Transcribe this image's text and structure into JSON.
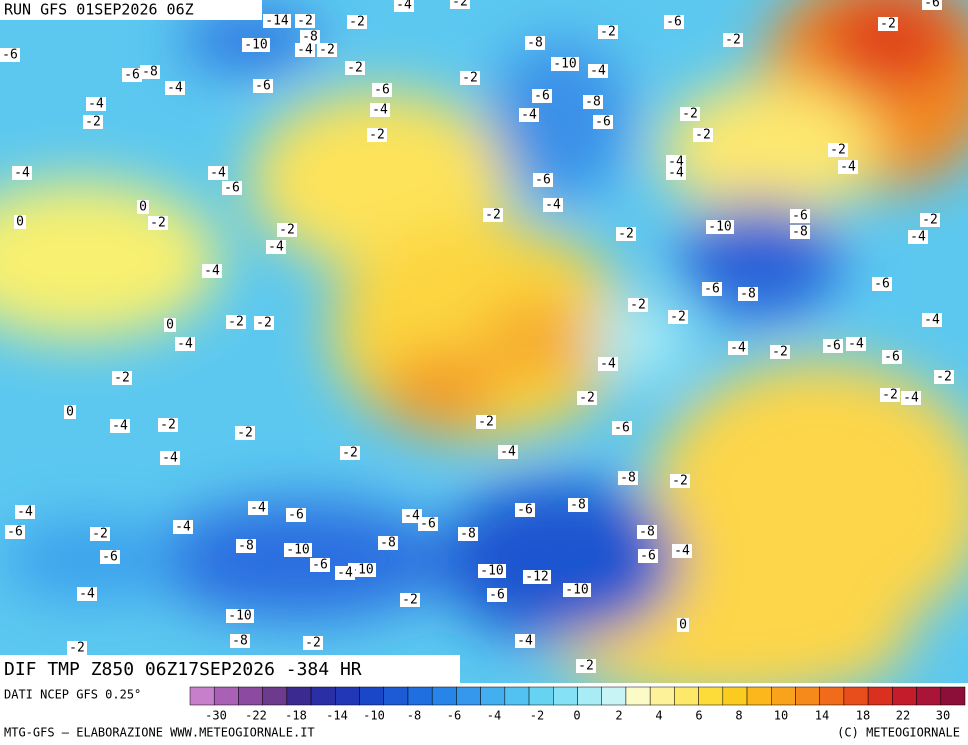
{
  "header": {
    "run": "RUN GFS 01SEP2026 06Z"
  },
  "map": {
    "title": "DIF TMP Z850 06Z17SEP2026 -384 HR",
    "contour_labels": [
      -14,
      -2,
      -2,
      -4,
      -6,
      -10,
      -8,
      -4,
      -2,
      -6,
      -8,
      -4,
      -6,
      -2,
      -2,
      -6,
      -4,
      -2,
      -4,
      -2,
      -4,
      -4,
      -6,
      0,
      -2,
      0,
      -2,
      -4,
      -4,
      0,
      -2,
      -2,
      -4,
      -2,
      0,
      -4,
      -2,
      -2,
      -4,
      -2,
      -4,
      -6,
      -2,
      -4,
      -4,
      -6,
      -6,
      -8,
      -10,
      -6,
      -10,
      -4,
      -8,
      -4,
      -6,
      -8,
      -6,
      -8,
      -8,
      -2,
      -8,
      -6,
      -4,
      -10,
      -12,
      -10,
      -6,
      -2,
      -4,
      -10,
      -8,
      -2,
      -2,
      -4,
      0,
      -2,
      -8,
      -10,
      -4,
      -6,
      -8,
      -4,
      -6,
      -2,
      -6,
      -2,
      -2,
      -2,
      -4,
      -4,
      -2,
      -4,
      -6,
      -4,
      -2,
      -2,
      -10,
      -6,
      -8,
      -6,
      -8,
      -6,
      -2,
      -2,
      -4,
      -2,
      -6,
      -4,
      -6,
      -4,
      -2,
      -2,
      -4,
      -4,
      -2,
      -2,
      -6,
      -4,
      -2,
      -6,
      -2,
      -4,
      -2
    ]
  },
  "legend": {
    "source": "DATI NCEP GFS 0.25°",
    "colors": [
      "#c77fcc",
      "#a960b5",
      "#8c4aa0",
      "#6e3a8e",
      "#3b2a8f",
      "#2a2fa5",
      "#2137b8",
      "#1a46c8",
      "#1c5ad6",
      "#1f6fe0",
      "#2784e8",
      "#3598ec",
      "#43aef0",
      "#52c2f2",
      "#66d3f3",
      "#85e1f5",
      "#a8ecf6",
      "#c9f4f5",
      "#fbfbc8",
      "#fdf29a",
      "#fde869",
      "#fddc3a",
      "#fccb1f",
      "#fbb71c",
      "#f9a21b",
      "#f68a1a",
      "#f06c1a",
      "#e84e1c",
      "#d9301f",
      "#c41c2a",
      "#a91438",
      "#8c0f3a"
    ],
    "ticks": [
      -30,
      -22,
      -18,
      -14,
      -10,
      -8,
      -6,
      -4,
      -2,
      0,
      2,
      4,
      6,
      8,
      10,
      14,
      18,
      22,
      30
    ]
  },
  "footer": {
    "left": "MTG-GFS — ELABORAZIONE WWW.METEOGIORNALE.IT",
    "right": "(C) METEOGIORNALE"
  }
}
